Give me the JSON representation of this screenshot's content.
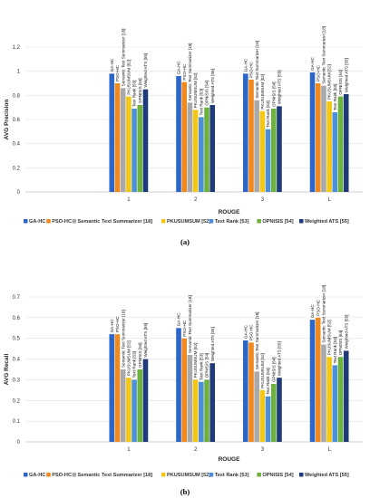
{
  "series": [
    {
      "name": "GA-HC",
      "color": "#2E66C8"
    },
    {
      "name": "PSO-HC",
      "color": "#F08A1E"
    },
    {
      "name": "Semantic Text Summarizer [18]",
      "color": "#A9A9A9"
    },
    {
      "name": "PKUSUMSUM [52]",
      "color": "#F4C714"
    },
    {
      "name": "Text Rank [53]",
      "color": "#4A8FD8"
    },
    {
      "name": "OPNISIS [54]",
      "color": "#6DB23C"
    },
    {
      "name": "Weighted ATS [55]",
      "color": "#1F3A7A"
    }
  ],
  "chart_data": [
    {
      "type": "bar",
      "ylabel": "AVG Precision",
      "xlabel": "ROUGE",
      "caption": "(a)",
      "categories": [
        "1",
        "2",
        "3",
        "L"
      ],
      "ylim": [
        0,
        1.2
      ],
      "yticks": [
        "0",
        "0.2",
        "0.4",
        "0.6",
        "0.8",
        "1",
        "1.2"
      ],
      "grid": true,
      "legend": "bottom",
      "series": [
        {
          "name": "GA-HC",
          "values": [
            0.98,
            0.96,
            0.98,
            0.99
          ]
        },
        {
          "name": "PSO-HC",
          "values": [
            0.9,
            0.91,
            0.93,
            0.9
          ]
        },
        {
          "name": "Semantic Text Summarizer [18]",
          "values": [
            0.86,
            0.74,
            0.76,
            0.88
          ]
        },
        {
          "name": "PKUSUMSUM [52]",
          "values": [
            0.79,
            0.68,
            0.67,
            0.75
          ]
        },
        {
          "name": "Text Rank [53]",
          "values": [
            0.69,
            0.62,
            0.52,
            0.66
          ]
        },
        {
          "name": "OPNISIS [54]",
          "values": [
            0.72,
            0.7,
            0.69,
            0.79
          ]
        },
        {
          "name": "Weighted ATS [55]",
          "values": [
            0.85,
            0.72,
            0.71,
            0.81
          ]
        }
      ]
    },
    {
      "type": "bar",
      "ylabel": "AVG Recall",
      "xlabel": "ROUGE",
      "caption": "(b)",
      "categories": [
        "1",
        "2",
        "3",
        "L"
      ],
      "ylim": [
        0,
        0.7
      ],
      "yticks": [
        "0",
        "0.1",
        "0.2",
        "0.3",
        "0.4",
        "0.5",
        "0.6",
        "0.7"
      ],
      "grid": true,
      "legend": "bottom",
      "series": [
        {
          "name": "GA-HC",
          "values": [
            0.52,
            0.55,
            0.49,
            0.59
          ]
        },
        {
          "name": "PSO-HC",
          "values": [
            0.52,
            0.5,
            0.48,
            0.6
          ]
        },
        {
          "name": "Semantic Text Summarizer [18]",
          "values": [
            0.35,
            0.42,
            0.34,
            0.47
          ]
        },
        {
          "name": "PKUSUMSUM [52]",
          "values": [
            0.31,
            0.3,
            0.25,
            0.41
          ]
        },
        {
          "name": "Text Rank [53]",
          "values": [
            0.3,
            0.29,
            0.22,
            0.37
          ]
        },
        {
          "name": "OPNISIS [54]",
          "values": [
            0.35,
            0.3,
            0.28,
            0.41
          ]
        },
        {
          "name": "Weighted ATS [55]",
          "values": [
            0.4,
            0.38,
            0.31,
            0.44
          ]
        }
      ]
    }
  ]
}
